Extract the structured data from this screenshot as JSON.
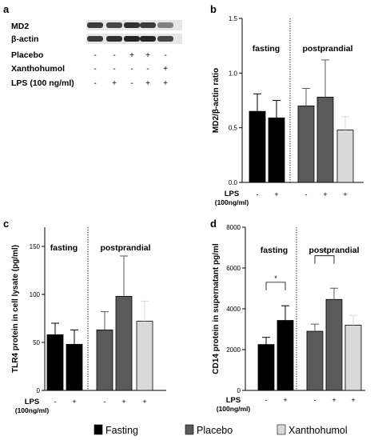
{
  "panel_labels": {
    "a": "a",
    "b": "b",
    "c": "c",
    "d": "d"
  },
  "blot": {
    "rows": [
      {
        "label": "MD2",
        "type": "band"
      },
      {
        "label": "β-actin",
        "type": "band"
      },
      {
        "label": "Placebo",
        "type": "sign",
        "signs": [
          "-",
          "-",
          "+",
          "+",
          "-"
        ]
      },
      {
        "label": "Xanthohumol",
        "type": "sign",
        "signs": [
          "-",
          "-",
          "-",
          "-",
          "+"
        ]
      },
      {
        "label": "LPS (100 ng/ml)",
        "type": "sign",
        "signs": [
          "-",
          "+",
          "-",
          "+",
          "+"
        ]
      }
    ],
    "md2_intensity": [
      0.85,
      0.8,
      0.9,
      0.85,
      0.55
    ],
    "actin_intensity": [
      0.85,
      0.9,
      0.95,
      0.95,
      0.8
    ]
  },
  "legend": [
    {
      "label": "Fasting",
      "color": "#000000"
    },
    {
      "label": "Placebo",
      "color": "#5a5a5a"
    },
    {
      "label": "Xanthohumol",
      "color": "#d9d9d9"
    }
  ],
  "lps_labels": {
    "line1": "LPS",
    "line2": "(100ng/ml)",
    "signs": [
      "-",
      "+",
      "-",
      "+",
      "+"
    ]
  },
  "chart_data": [
    {
      "panel": "b",
      "type": "bar",
      "ylabel": "MD2/β-actin ratio",
      "ylim": [
        0,
        1.5
      ],
      "yticks": [
        "0.0",
        "0.5",
        "1.0",
        "1.5"
      ],
      "ytick_values": [
        0,
        0.5,
        1.0,
        1.5
      ],
      "group_labels": [
        "fasting",
        "postprandial"
      ],
      "bars": [
        {
          "value": 0.65,
          "error": 0.16,
          "color": "#000000"
        },
        {
          "value": 0.59,
          "error": 0.16,
          "color": "#000000"
        },
        {
          "value": 0.7,
          "error": 0.16,
          "color": "#5a5a5a"
        },
        {
          "value": 0.78,
          "error": 0.34,
          "color": "#5a5a5a"
        },
        {
          "value": 0.48,
          "error": 0.12,
          "color": "#d9d9d9"
        }
      ],
      "significance": []
    },
    {
      "panel": "c",
      "type": "bar",
      "ylabel": "TLR4 protein in cell lysate (pg/ml)",
      "ylim": [
        0,
        170
      ],
      "yticks": [
        "0",
        "50",
        "100",
        "150"
      ],
      "ytick_values": [
        0,
        50,
        100,
        150
      ],
      "group_labels": [
        "fasting",
        "postprandial"
      ],
      "bars": [
        {
          "value": 58,
          "error": 12,
          "color": "#000000"
        },
        {
          "value": 48,
          "error": 15,
          "color": "#000000"
        },
        {
          "value": 63,
          "error": 19,
          "color": "#5a5a5a"
        },
        {
          "value": 98,
          "error": 42,
          "color": "#5a5a5a"
        },
        {
          "value": 72,
          "error": 21,
          "color": "#d9d9d9"
        }
      ],
      "significance": []
    },
    {
      "panel": "d",
      "type": "bar",
      "ylabel": "CD14 protein in supernatant pg/ml",
      "ylim": [
        0,
        8000
      ],
      "yticks": [
        "0",
        "2000",
        "4000",
        "6000",
        "8000"
      ],
      "ytick_values": [
        0,
        2000,
        4000,
        6000,
        8000
      ],
      "group_labels": [
        "fasting",
        "postprandial"
      ],
      "bars": [
        {
          "value": 2250,
          "error": 350,
          "color": "#000000"
        },
        {
          "value": 3430,
          "error": 720,
          "color": "#000000"
        },
        {
          "value": 2900,
          "error": 350,
          "color": "#5a5a5a"
        },
        {
          "value": 4460,
          "error": 550,
          "color": "#5a5a5a"
        },
        {
          "value": 3200,
          "error": 480,
          "color": "#d9d9d9"
        }
      ],
      "significance": [
        {
          "from": 0,
          "to": 1,
          "label": "*",
          "y": 5300
        },
        {
          "from": 2,
          "to": 3,
          "label": "*",
          "y": 6600
        }
      ]
    }
  ]
}
